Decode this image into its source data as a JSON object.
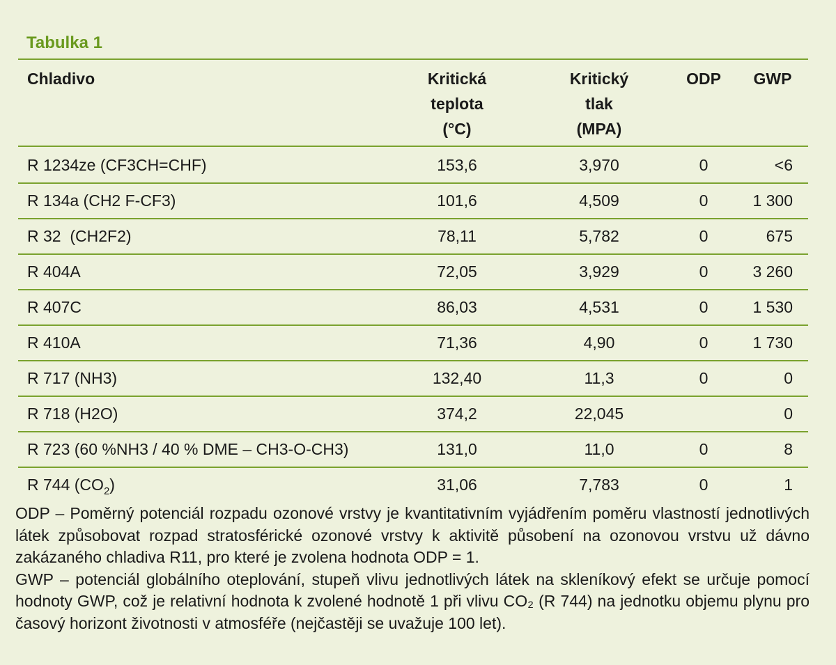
{
  "caption": "Tabulka 1",
  "headers": {
    "refrigerant": "Chladivo",
    "temp_1": "Kritická",
    "temp_2": "teplota",
    "temp_3": "(°C)",
    "press_1": "Kritický",
    "press_2": "tlak",
    "press_3": "(MPA)",
    "odp": "ODP",
    "gwp": "GWP"
  },
  "rows": [
    {
      "name": "R 1234ze (CF3CH=CHF)",
      "temp": "153,6",
      "pressure": "3,970",
      "odp": "0",
      "gwp": "<6"
    },
    {
      "name": "R 134a (CH2 F-CF3)",
      "temp": "101,6",
      "pressure": "4,509",
      "odp": "0",
      "gwp": "1 300"
    },
    {
      "name": "R 32  (CH2F2)",
      "temp": "78,11",
      "pressure": "5,782",
      "odp": "0",
      "gwp": "675"
    },
    {
      "name": "R 404A",
      "temp": "72,05",
      "pressure": "3,929",
      "odp": "0",
      "gwp": "3 260"
    },
    {
      "name": "R 407C",
      "temp": "86,03",
      "pressure": "4,531",
      "odp": "0",
      "gwp": "1 530"
    },
    {
      "name": "R 410A",
      "temp": "71,36",
      "pressure": "4,90",
      "odp": "0",
      "gwp": "1 730"
    },
    {
      "name": "R 717 (NH3)",
      "temp": "132,40",
      "pressure": "11,3",
      "odp": "0",
      "gwp": "0"
    },
    {
      "name": "R 718 (H2O)",
      "temp": "374,2",
      "pressure": "22,045",
      "odp": "",
      "gwp": "0"
    },
    {
      "name": "R 723 (60 %NH3 / 40 % DME – CH3-O-CH3)",
      "temp": "131,0",
      "pressure": "11,0",
      "odp": "0",
      "gwp": "8"
    },
    {
      "name_prefix": "R 744 (CO",
      "name_sub": "2",
      "name_suffix": ")",
      "temp": "31,06",
      "pressure": "7,783",
      "odp": "0",
      "gwp": "1"
    }
  ],
  "notes": {
    "odp": "ODP – Poměrný potenciál rozpadu ozonové vrstvy je kvantitativním vyjádřením poměru vlastností jednotlivých látek způsobovat rozpad stratosférické ozonové vrstvy k aktivitě působení na ozonovou vrstvu už dávno zakázaného chladiva R11, pro které je zvolena hodnota ODP = 1.",
    "gwp": "GWP – potenciál globálního oteplování, stupeň vlivu jednotlivých látek na skleníkový efekt se určuje pomocí hodnoty GWP, což je relativní hodnota k zvolené hodnotě 1 při vlivu CO₂ (R 744) na jednotku objemu plynu pro časový horizont životnosti v atmosféře (nejčastěji se uvažuje 100 let)."
  },
  "colors": {
    "background": "#eef2dd",
    "accent": "#6a9a1f",
    "rule": "#7aa22e",
    "text": "#1a1a1a"
  }
}
